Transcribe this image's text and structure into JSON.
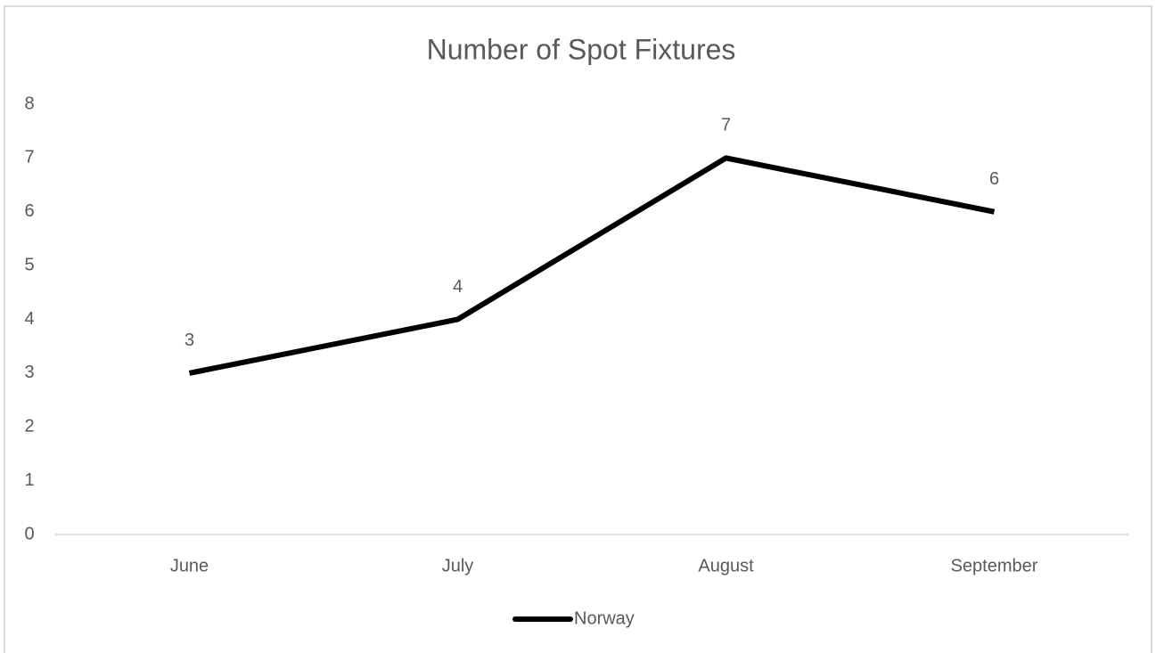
{
  "chart_data": {
    "type": "line",
    "title": "Number of Spot Fixtures",
    "categories": [
      "June",
      "July",
      "August",
      "September"
    ],
    "series": [
      {
        "name": "Norway",
        "color": "#000000",
        "values": [
          3,
          4,
          7,
          6
        ]
      }
    ],
    "ylim": [
      0,
      8
    ],
    "yticks": [
      0,
      1,
      2,
      3,
      4,
      5,
      6,
      7,
      8
    ],
    "grid": false,
    "data_labels": true,
    "legend": "bottom"
  }
}
